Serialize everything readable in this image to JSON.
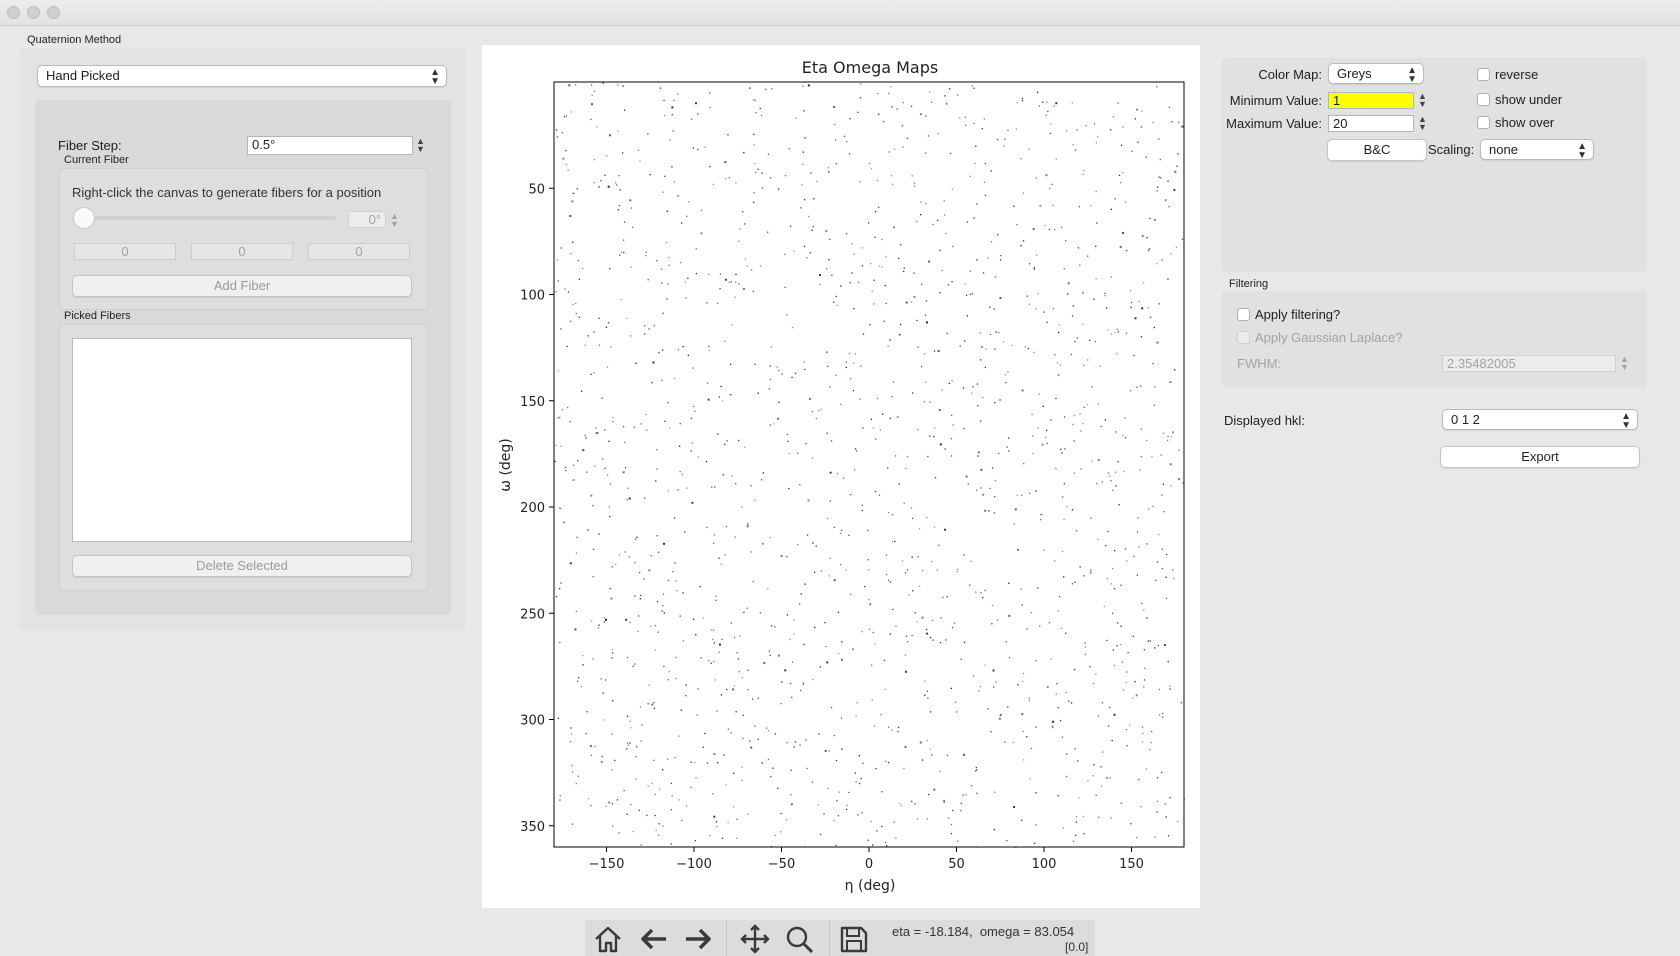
{
  "left": {
    "method_label": "Quaternion Method",
    "method_value": "Hand Picked",
    "fiber_step_label": "Fiber Step:",
    "fiber_step_value": "0.5°",
    "current_fiber_label": "Current Fiber",
    "instruction": "Right-click the canvas to generate fibers for a position",
    "slider_value_text": "0°",
    "coords": [
      "0",
      "0",
      "0"
    ],
    "add_fiber_label": "Add Fiber",
    "picked_fibers_label": "Picked Fibers",
    "delete_selected_label": "Delete Selected"
  },
  "right": {
    "color_map_label": "Color Map:",
    "color_map_value": "Greys",
    "reverse_label": "reverse",
    "min_label": "Minimum Value:",
    "min_value": "1",
    "max_label": "Maximum Value:",
    "max_value": "20",
    "show_under_label": "show under",
    "show_over_label": "show over",
    "bc_label": "B&C",
    "scaling_label": "Scaling:",
    "scaling_value": "none",
    "filtering_label": "Filtering",
    "apply_filtering_label": "Apply filtering?",
    "apply_gaussian_label": "Apply Gaussian Laplace?",
    "fwhm_label": "FWHM:",
    "fwhm_value": "2.35482005",
    "displayed_hkl_label": "Displayed hkl:",
    "displayed_hkl_value": "0 1 2",
    "export_label": "Export",
    "highlight_color": "#ffff00"
  },
  "chart_data": {
    "type": "scatter",
    "title": "Eta Omega Maps",
    "xlabel": "η (deg)",
    "ylabel": "ω (deg)",
    "xlim": [
      -180,
      180
    ],
    "ylim": [
      360,
      0
    ],
    "y_inverted": true,
    "xticks": [
      "−150",
      "−100",
      "−50",
      "0",
      "50",
      "100",
      "150"
    ],
    "xtick_values": [
      -150,
      -100,
      -50,
      0,
      50,
      100,
      150
    ],
    "yticks": [
      "50",
      "100",
      "150",
      "200",
      "250",
      "300",
      "350"
    ],
    "ytick_values": [
      50,
      100,
      150,
      200,
      250,
      300,
      350
    ],
    "colormap": "Greys",
    "point_density_note": "sparse intensity map, approx. 1600 dark points",
    "point_count": 1600,
    "point_color": "#222222"
  },
  "status": {
    "coords_text": "eta = -18.184,  omega = 83.054",
    "value_text": "[0.0]"
  },
  "toolbar": {
    "icons": [
      "home-icon",
      "back-icon",
      "forward-icon",
      "pan-icon",
      "zoom-icon",
      "save-icon"
    ]
  }
}
